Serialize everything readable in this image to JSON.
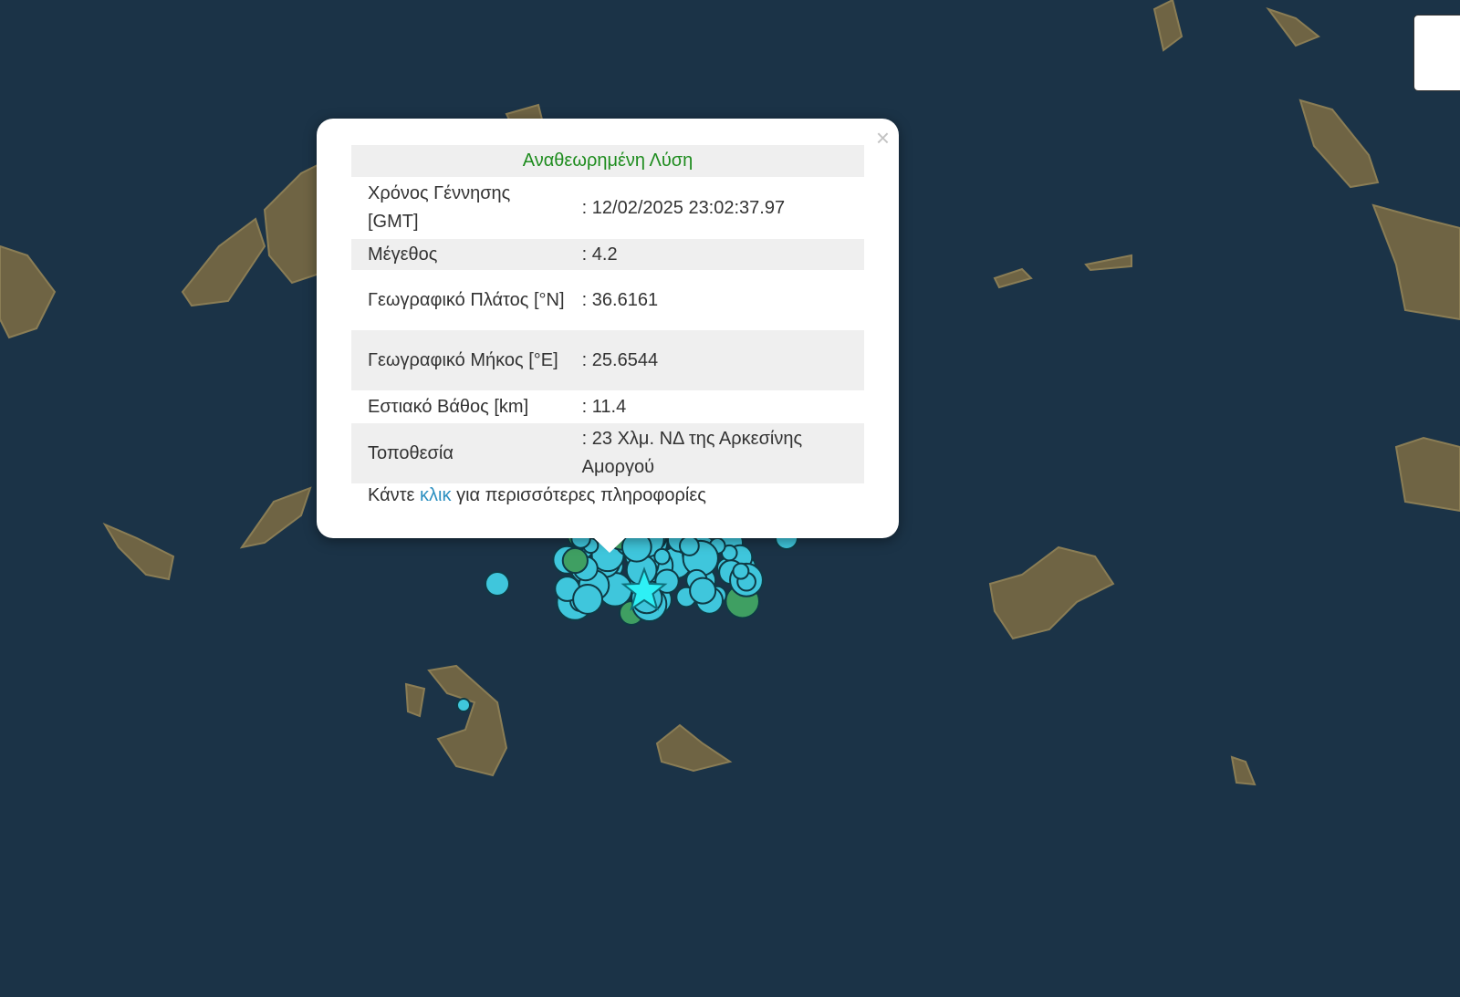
{
  "popup": {
    "title": "Αναθεωρημένη Λύση",
    "close_label": "×",
    "rows": [
      {
        "label": "Χρόνος Γέννησης [GMT]",
        "value": ": 12/02/2025 23:02:37.97"
      },
      {
        "label": "Μέγεθος",
        "value": ": 4.2"
      },
      {
        "label": "Γεωγραφικό Πλάτος [°N]",
        "value": ": 36.6161"
      },
      {
        "label": "Γεωγραφικό Μήκος [°E]",
        "value": ": 25.6544"
      },
      {
        "label": "Εστιακό Βάθος [km]",
        "value": ": 11.4"
      },
      {
        "label": "Τοποθεσία",
        "value": ": 23 Χλμ. ΝΔ της Αρκεσίνης Αμοργού"
      }
    ],
    "more_prefix": "Κάντε",
    "more_link": "κλικ",
    "more_suffix": "για περισσότερες πληροφορίες"
  },
  "colors": {
    "sea": "#1b3347",
    "land": "#7a6a45",
    "event": "#3fc6dc",
    "event_old": "#3f9f62",
    "latest_star": "#2ef0f5",
    "title": "#1e8c1e",
    "link": "#2b8fc0"
  },
  "icons": {
    "close": "close-icon",
    "latest": "star-icon",
    "events": "circle-marker-icon"
  }
}
